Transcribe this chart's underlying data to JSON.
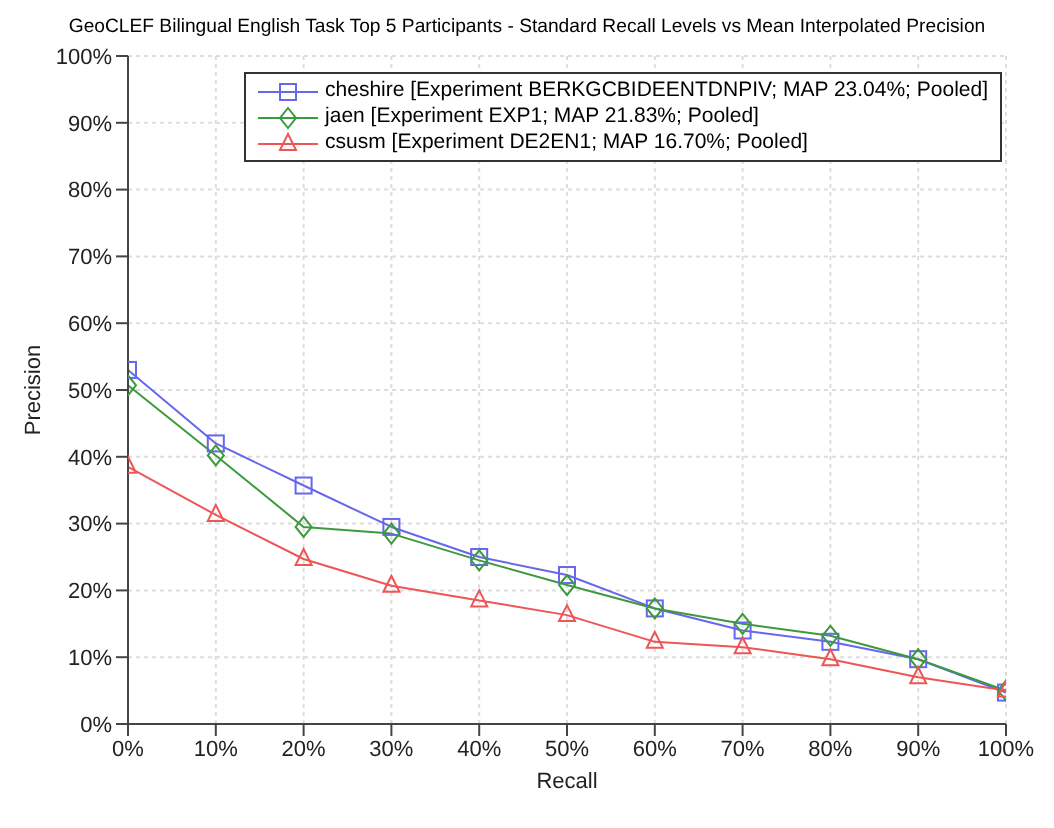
{
  "chart_data": {
    "type": "line",
    "title": "GeoCLEF Bilingual English Task Top 5 Participants - Standard Recall Levels vs Mean Interpolated Precision",
    "xlabel": "Recall",
    "ylabel": "Precision",
    "x": [
      0,
      10,
      20,
      30,
      40,
      50,
      60,
      70,
      80,
      90,
      100
    ],
    "series": [
      {
        "name": "cheshire [Experiment BERKGCBIDEENTDNPIV; MAP 23.04%; Pooled]",
        "color": "#6666ee",
        "marker": "square",
        "values": [
          53.0,
          42.0,
          35.7,
          29.5,
          25.0,
          22.3,
          17.3,
          14.0,
          12.3,
          9.7,
          4.7
        ]
      },
      {
        "name": "jaen [Experiment EXP1; MAP 21.83%; Pooled]",
        "color": "#3c9a3c",
        "marker": "diamond",
        "values": [
          50.7,
          40.2,
          29.5,
          28.5,
          24.5,
          20.8,
          17.3,
          15.0,
          13.2,
          9.7,
          5.0
        ]
      },
      {
        "name": "csusm [Experiment DE2EN1; MAP 16.70%; Pooled]",
        "color": "#ee5555",
        "marker": "triangle",
        "values": [
          38.5,
          31.3,
          24.7,
          20.7,
          18.5,
          16.3,
          12.3,
          11.5,
          9.7,
          7.0,
          5.0
        ]
      }
    ],
    "xlim": [
      0,
      100
    ],
    "ylim": [
      0,
      100
    ],
    "xticks": [
      {
        "value": 0,
        "label": "0%"
      },
      {
        "value": 10,
        "label": "10%"
      },
      {
        "value": 20,
        "label": "20%"
      },
      {
        "value": 30,
        "label": "30%"
      },
      {
        "value": 40,
        "label": "40%"
      },
      {
        "value": 50,
        "label": "50%"
      },
      {
        "value": 60,
        "label": "60%"
      },
      {
        "value": 70,
        "label": "70%"
      },
      {
        "value": 80,
        "label": "80%"
      },
      {
        "value": 90,
        "label": "90%"
      },
      {
        "value": 100,
        "label": "100%"
      }
    ],
    "yticks": [
      {
        "value": 0,
        "label": "0%"
      },
      {
        "value": 10,
        "label": "10%"
      },
      {
        "value": 20,
        "label": "20%"
      },
      {
        "value": 30,
        "label": "30%"
      },
      {
        "value": 40,
        "label": "40%"
      },
      {
        "value": 50,
        "label": "50%"
      },
      {
        "value": 60,
        "label": "60%"
      },
      {
        "value": 70,
        "label": "70%"
      },
      {
        "value": 80,
        "label": "80%"
      },
      {
        "value": 90,
        "label": "90%"
      },
      {
        "value": 100,
        "label": "100%"
      }
    ],
    "grid": true,
    "legend": "top right",
    "line_style": "solid"
  }
}
